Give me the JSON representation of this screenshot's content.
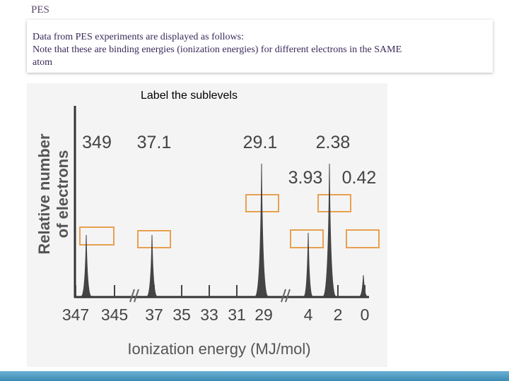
{
  "header": {
    "title": "PES"
  },
  "note": {
    "lines": [
      "Data from PES experiments are displayed as follows:",
      "Note that these are binding energies (ionization energies) for different electrons in the SAME",
      "atom"
    ]
  },
  "instruction": "Label the sublevels",
  "spectrum": {
    "y_axis_label": [
      "Relative number",
      "of electrons"
    ],
    "x_axis_label": "Ionization energy (MJ/mol)",
    "peak_labels": [
      349,
      37.1,
      29.1,
      3.93,
      2.38,
      0.42
    ],
    "x_tick_labels": [
      347,
      345,
      37,
      35,
      33,
      31,
      29,
      4,
      2,
      0
    ]
  }
}
